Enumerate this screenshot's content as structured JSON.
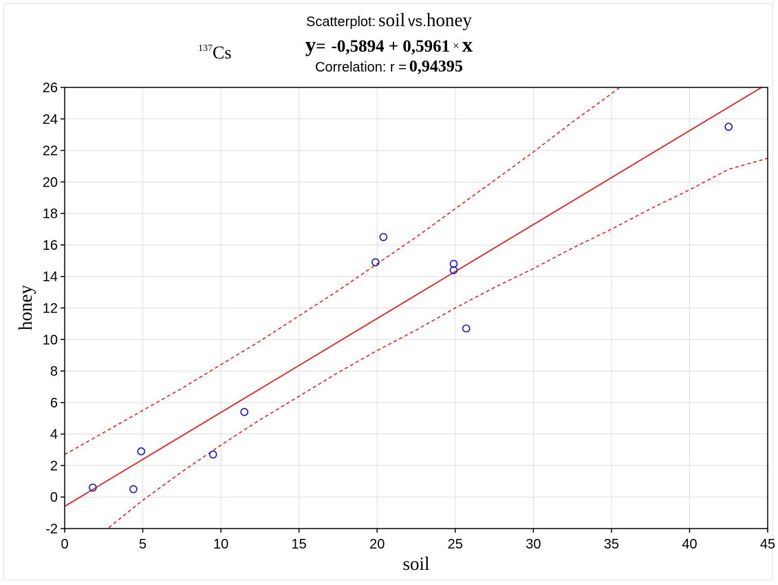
{
  "chart_data": {
    "type": "scatter",
    "title": {
      "prefix": "Scatterplot:",
      "x_var": "soil",
      "vs": "vs.",
      "y_var": "honey"
    },
    "isotope": {
      "mass": "137",
      "element": "Cs"
    },
    "equation": {
      "y": "y",
      "equals": "=",
      "text": "-0,5894 + 0,5961",
      "times": "×",
      "x": "x"
    },
    "correlation": {
      "label": "Correlation: r =",
      "value": "0,94395"
    },
    "xlabel": "soil",
    "ylabel": "honey",
    "xlim": [
      0,
      45
    ],
    "ylim": [
      -2,
      26
    ],
    "xticks": [
      0,
      5,
      10,
      15,
      20,
      25,
      30,
      35,
      40,
      45
    ],
    "yticks": [
      -2,
      0,
      2,
      4,
      6,
      8,
      10,
      12,
      14,
      16,
      18,
      20,
      22,
      24,
      26
    ],
    "grid": true,
    "regression": {
      "intercept": -0.5894,
      "slope": 0.5961
    },
    "confidence_band": {
      "upper": [
        [
          0,
          2.7
        ],
        [
          2.5,
          4.1
        ],
        [
          5,
          5.5
        ],
        [
          7.5,
          6.9
        ],
        [
          10,
          8.4
        ],
        [
          12.5,
          9.9
        ],
        [
          15,
          11.5
        ],
        [
          17.5,
          13.1
        ],
        [
          20,
          14.8
        ],
        [
          22.5,
          16.5
        ],
        [
          25,
          18.3
        ],
        [
          27.5,
          20.1
        ],
        [
          30,
          21.9
        ],
        [
          32.5,
          23.8
        ],
        [
          35,
          25.6
        ],
        [
          37.5,
          27.5
        ],
        [
          40,
          29.4
        ]
      ],
      "lower": [
        [
          0,
          -4.1
        ],
        [
          2.5,
          -2.2
        ],
        [
          5,
          -0.2
        ],
        [
          7.5,
          1.6
        ],
        [
          10,
          3.3
        ],
        [
          12.5,
          4.9
        ],
        [
          15,
          6.4
        ],
        [
          17.5,
          7.9
        ],
        [
          20,
          9.3
        ],
        [
          22.5,
          10.6
        ],
        [
          25,
          12.0
        ],
        [
          27.5,
          13.3
        ],
        [
          30,
          14.5
        ],
        [
          32.5,
          15.8
        ],
        [
          35,
          17.0
        ],
        [
          37.5,
          18.3
        ],
        [
          40,
          19.5
        ],
        [
          42.5,
          20.8
        ],
        [
          45,
          21.5
        ]
      ]
    },
    "points": [
      {
        "x": 1.8,
        "y": 0.6
      },
      {
        "x": 4.4,
        "y": 0.5
      },
      {
        "x": 4.9,
        "y": 2.9
      },
      {
        "x": 9.5,
        "y": 2.7
      },
      {
        "x": 11.5,
        "y": 5.4
      },
      {
        "x": 19.9,
        "y": 14.9
      },
      {
        "x": 20.4,
        "y": 16.5
      },
      {
        "x": 24.9,
        "y": 14.8
      },
      {
        "x": 24.9,
        "y": 14.4
      },
      {
        "x": 25.7,
        "y": 10.7
      },
      {
        "x": 42.5,
        "y": 23.5
      }
    ],
    "colors": {
      "points": "#1a1acc",
      "lines": "#dd2222",
      "grid": "#dcdcdc",
      "axes": "#000000"
    }
  }
}
